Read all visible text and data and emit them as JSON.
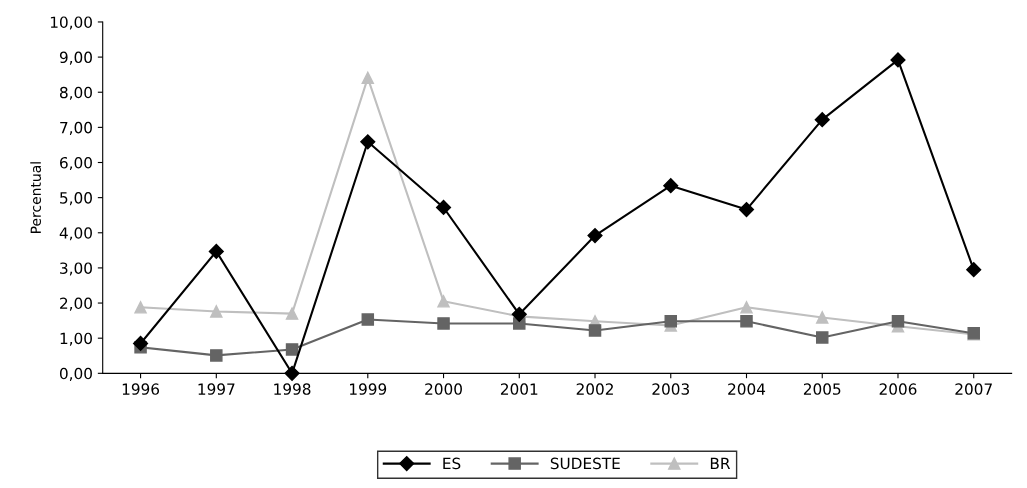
{
  "chart_data": {
    "type": "line",
    "ylabel": "Percentual",
    "categories": [
      "1996",
      "1997",
      "1998",
      "1999",
      "2000",
      "2001",
      "2002",
      "2003",
      "2004",
      "2005",
      "2006",
      "2007"
    ],
    "series": [
      {
        "name": "ES",
        "color": "#000000",
        "marker": "diamond",
        "values": [
          0.85,
          3.47,
          0.0,
          6.59,
          4.72,
          1.68,
          3.92,
          5.34,
          4.66,
          7.22,
          8.92,
          2.95
        ]
      },
      {
        "name": "SUDESTE",
        "color": "#646464",
        "marker": "square",
        "values": [
          0.74,
          0.51,
          0.68,
          1.53,
          1.42,
          1.42,
          1.22,
          1.48,
          1.48,
          1.02,
          1.48,
          1.14
        ]
      },
      {
        "name": "BR",
        "color": "#bfbfbf",
        "marker": "triangle",
        "values": [
          1.88,
          1.76,
          1.7,
          8.41,
          2.05,
          1.62,
          1.48,
          1.36,
          1.88,
          1.59,
          1.34,
          1.11
        ]
      }
    ],
    "ylim": [
      0,
      10
    ],
    "yticks": [
      {
        "value": 0,
        "label": "0,00"
      },
      {
        "value": 1,
        "label": "1,00"
      },
      {
        "value": 2,
        "label": "2,00"
      },
      {
        "value": 3,
        "label": "3,00"
      },
      {
        "value": 4,
        "label": "4,00"
      },
      {
        "value": 5,
        "label": "5,00"
      },
      {
        "value": 6,
        "label": "6,00"
      },
      {
        "value": 7,
        "label": "7,00"
      },
      {
        "value": 8,
        "label": "8,00"
      },
      {
        "value": 9,
        "label": "9,00"
      },
      {
        "value": 10,
        "label": "10,00"
      }
    ],
    "grid": false,
    "legend": "bottom",
    "line_style": "solid"
  }
}
